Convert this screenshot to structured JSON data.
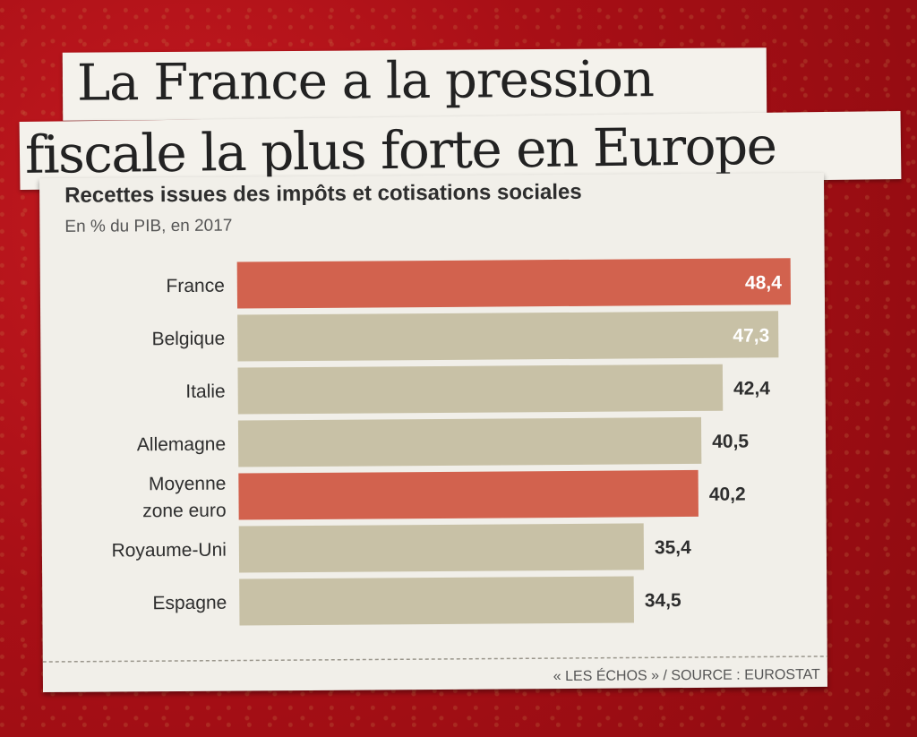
{
  "headline": {
    "line1": "La France a la pression",
    "line2": "fiscale la plus forte en Europe"
  },
  "chart_data": {
    "type": "bar",
    "orientation": "horizontal",
    "title": "Recettes issues des impôts et cotisations sociales",
    "subtitle": "En % du PIB, en 2017",
    "categories": [
      "France",
      "Belgique",
      "Italie",
      "Allemagne",
      "Moyenne zone euro",
      "Royaume-Uni",
      "Espagne"
    ],
    "category_lines": [
      [
        "France"
      ],
      [
        "Belgique"
      ],
      [
        "Italie"
      ],
      [
        "Allemagne"
      ],
      [
        "Moyenne",
        "zone euro"
      ],
      [
        "Royaume-Uni"
      ],
      [
        "Espagne"
      ]
    ],
    "values": [
      48.4,
      47.3,
      42.4,
      40.5,
      40.2,
      35.4,
      34.5
    ],
    "value_labels": [
      "48,4",
      "47,3",
      "42,4",
      "40,5",
      "40,2",
      "35,4",
      "34,5"
    ],
    "highlight": [
      true,
      false,
      false,
      false,
      true,
      false,
      false
    ],
    "colors": {
      "highlight": "#d2624e",
      "default": "#c8c1a6",
      "label_inside": "#ffffff",
      "label_outside": "#2e2e2e"
    },
    "source": "« LES ÉCHOS » / SOURCE : EUROSTAT"
  }
}
